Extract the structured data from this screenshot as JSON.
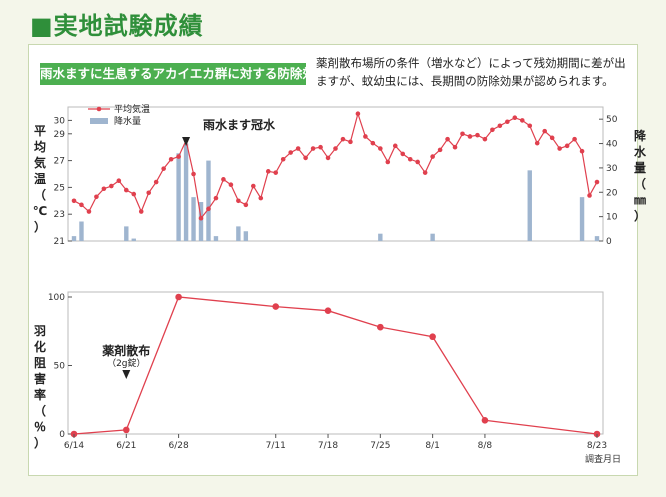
{
  "page": {
    "title": "■実地試験成績",
    "subtitle": "雨水ますに生息するアカイエカ群に対する防除効果",
    "description": "薬剤散布場所の条件（増水など）によって残効期間に差が出ますが、蚊幼虫には、長期間の防除効果が認められます。"
  },
  "colors": {
    "title_green": "#2f8f3a",
    "banner_green": "#4caf50",
    "line_red": "#e0404e",
    "bar_blue": "#9fb5cf"
  },
  "chart_data": [
    {
      "type": "line+bar",
      "legend": [
        "平均気温",
        "降水量"
      ],
      "legend_position": "top-left",
      "ylabel_left": "平均気温（℃）",
      "ylabel_right": "降水量（㎜）",
      "ylim_left": [
        21,
        31
      ],
      "yticks_left": [
        21,
        23,
        25,
        27,
        29,
        30
      ],
      "ylim_right": [
        0,
        55
      ],
      "yticks_right": [
        0,
        10,
        20,
        30,
        40,
        50
      ],
      "x_range_days": [
        "6/14",
        "8/23"
      ],
      "annotation": "雨水ます冠水",
      "annotation_date": "6/29",
      "temperature": [
        [
          "6/14",
          24.0
        ],
        [
          "6/15",
          23.7
        ],
        [
          "6/16",
          23.2
        ],
        [
          "6/17",
          24.3
        ],
        [
          "6/18",
          24.9
        ],
        [
          "6/19",
          25.1
        ],
        [
          "6/20",
          25.5
        ],
        [
          "6/21",
          24.8
        ],
        [
          "6/22",
          24.5
        ],
        [
          "6/23",
          23.2
        ],
        [
          "6/24",
          24.6
        ],
        [
          "6/25",
          25.4
        ],
        [
          "6/26",
          26.4
        ],
        [
          "6/27",
          27.1
        ],
        [
          "6/28",
          27.3
        ],
        [
          "6/29",
          28.5
        ],
        [
          "6/30",
          26.0
        ],
        [
          "7/1",
          22.7
        ],
        [
          "7/2",
          23.4
        ],
        [
          "7/3",
          24.2
        ],
        [
          "7/4",
          25.6
        ],
        [
          "7/5",
          25.2
        ],
        [
          "7/6",
          24.0
        ],
        [
          "7/7",
          23.7
        ],
        [
          "7/8",
          25.1
        ],
        [
          "7/9",
          24.2
        ],
        [
          "7/10",
          26.2
        ],
        [
          "7/11",
          26.1
        ],
        [
          "7/12",
          27.1
        ],
        [
          "7/13",
          27.6
        ],
        [
          "7/14",
          27.9
        ],
        [
          "7/15",
          27.2
        ],
        [
          "7/16",
          27.9
        ],
        [
          "7/17",
          28.0
        ],
        [
          "7/18",
          27.2
        ],
        [
          "7/19",
          27.9
        ],
        [
          "7/20",
          28.6
        ],
        [
          "7/21",
          28.4
        ],
        [
          "7/22",
          30.5
        ],
        [
          "7/23",
          28.8
        ],
        [
          "7/24",
          28.3
        ],
        [
          "7/25",
          27.9
        ],
        [
          "7/26",
          26.9
        ],
        [
          "7/27",
          28.1
        ],
        [
          "7/28",
          27.5
        ],
        [
          "7/29",
          27.1
        ],
        [
          "7/30",
          26.9
        ],
        [
          "7/31",
          26.1
        ],
        [
          "8/1",
          27.3
        ],
        [
          "8/2",
          27.8
        ],
        [
          "8/3",
          28.6
        ],
        [
          "8/4",
          28.0
        ],
        [
          "8/5",
          29.0
        ],
        [
          "8/6",
          28.8
        ],
        [
          "8/7",
          28.9
        ],
        [
          "8/8",
          28.6
        ],
        [
          "8/9",
          29.3
        ],
        [
          "8/10",
          29.6
        ],
        [
          "8/11",
          29.9
        ],
        [
          "8/12",
          30.2
        ],
        [
          "8/13",
          30.0
        ],
        [
          "8/14",
          29.6
        ],
        [
          "8/15",
          28.3
        ],
        [
          "8/16",
          29.2
        ],
        [
          "8/17",
          28.7
        ],
        [
          "8/18",
          27.9
        ],
        [
          "8/19",
          28.1
        ],
        [
          "8/20",
          28.6
        ],
        [
          "8/21",
          27.7
        ],
        [
          "8/22",
          24.4
        ],
        [
          "8/23",
          25.4
        ]
      ],
      "precipitation": [
        [
          "6/14",
          2
        ],
        [
          "6/15",
          8
        ],
        [
          "6/21",
          6
        ],
        [
          "6/22",
          1
        ],
        [
          "6/28",
          36
        ],
        [
          "6/29",
          40
        ],
        [
          "6/30",
          18
        ],
        [
          "7/1",
          16
        ],
        [
          "7/2",
          33
        ],
        [
          "7/3",
          2
        ],
        [
          "7/6",
          6
        ],
        [
          "7/7",
          4
        ],
        [
          "7/25",
          3
        ],
        [
          "8/1",
          3
        ],
        [
          "8/14",
          29
        ],
        [
          "8/21",
          18
        ],
        [
          "8/23",
          2
        ]
      ]
    },
    {
      "type": "line",
      "ylabel": "羽化阻害率（％）",
      "xlabel": "調査月日",
      "ylim": [
        0,
        100
      ],
      "yticks": [
        0,
        50,
        100
      ],
      "categories": [
        "6/14",
        "6/21",
        "6/28",
        "7/11",
        "7/18",
        "7/25",
        "8/1",
        "8/8",
        "8/23"
      ],
      "values": [
        0,
        3,
        100,
        93,
        90,
        78,
        71,
        10,
        0
      ],
      "annotation": "薬剤散布",
      "annotation_sub": "（2g錠）",
      "annotation_date": "6/21"
    }
  ]
}
